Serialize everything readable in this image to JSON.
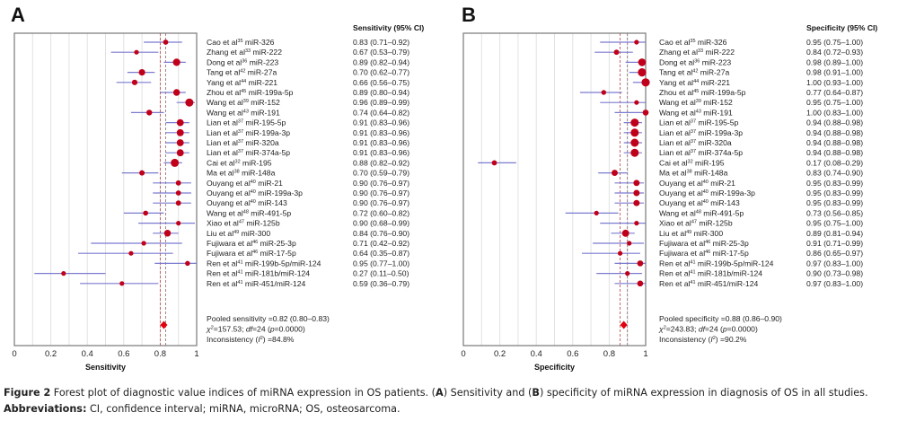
{
  "chart_data": [
    {
      "type": "forest",
      "panel": "A",
      "header": "Sensitivity (95% CI)",
      "xlabel": "Sensitivity",
      "xlim": [
        0,
        1
      ],
      "xticks": [
        "0",
        "0.2",
        "0.4",
        "0.6",
        "0.8",
        "1"
      ],
      "grid": true,
      "reference_lines": [
        0.8,
        0.83
      ],
      "studies": [
        {
          "author": "Cao et al",
          "ref": "35",
          "mirna": "miR-326",
          "est": 0.83,
          "lo": 0.71,
          "hi": 0.92,
          "text": "0.83 (0.71–0.92)"
        },
        {
          "author": "Zhang et al",
          "ref": "33",
          "mirna": "miR-222",
          "est": 0.67,
          "lo": 0.53,
          "hi": 0.79,
          "text": "0.67 (0.53–0.79)"
        },
        {
          "author": "Dong et al",
          "ref": "36",
          "mirna": "miR-223",
          "est": 0.89,
          "lo": 0.82,
          "hi": 0.94,
          "text": "0.89 (0.82–0.94)"
        },
        {
          "author": "Tang et al",
          "ref": "42",
          "mirna": "miR-27a",
          "est": 0.7,
          "lo": 0.62,
          "hi": 0.77,
          "text": "0.70 (0.62–0.77)"
        },
        {
          "author": "Yang et al",
          "ref": "44",
          "mirna": "miR-221",
          "est": 0.66,
          "lo": 0.56,
          "hi": 0.75,
          "text": "0.66 (0.56–0.75)"
        },
        {
          "author": "Zhou et al",
          "ref": "45",
          "mirna": "miR-199a-5p",
          "est": 0.89,
          "lo": 0.8,
          "hi": 0.94,
          "text": "0.89 (0.80–0.94)"
        },
        {
          "author": "Wang et al",
          "ref": "39",
          "mirna": "miR-152",
          "est": 0.96,
          "lo": 0.89,
          "hi": 0.99,
          "text": "0.96 (0.89–0.99)"
        },
        {
          "author": "Wang et al",
          "ref": "43",
          "mirna": "miR-191",
          "est": 0.74,
          "lo": 0.64,
          "hi": 0.82,
          "text": "0.74 (0.64–0.82)"
        },
        {
          "author": "Lian et al",
          "ref": "37",
          "mirna": "miR-195-5p",
          "est": 0.91,
          "lo": 0.83,
          "hi": 0.96,
          "text": "0.91 (0.83–0.96)"
        },
        {
          "author": "Lian et al",
          "ref": "37",
          "mirna": "miR-199a-3p",
          "est": 0.91,
          "lo": 0.83,
          "hi": 0.96,
          "text": "0.91 (0.83–0.96)"
        },
        {
          "author": "Lian et al",
          "ref": "37",
          "mirna": "miR-320a",
          "est": 0.91,
          "lo": 0.83,
          "hi": 0.96,
          "text": "0.91 (0.83–0.96)"
        },
        {
          "author": "Lian et al",
          "ref": "37",
          "mirna": "miR-374a-5p",
          "est": 0.91,
          "lo": 0.83,
          "hi": 0.96,
          "text": "0.91 (0.83–0.96)"
        },
        {
          "author": "Cai et al",
          "ref": "32",
          "mirna": "miR-195",
          "est": 0.88,
          "lo": 0.82,
          "hi": 0.92,
          "text": "0.88 (0.82–0.92)"
        },
        {
          "author": "Ma et al",
          "ref": "38",
          "mirna": "miR-148a",
          "est": 0.7,
          "lo": 0.59,
          "hi": 0.79,
          "text": "0.70 (0.59–0.79)"
        },
        {
          "author": "Ouyang et al",
          "ref": "40",
          "mirna": "miR-21",
          "est": 0.9,
          "lo": 0.76,
          "hi": 0.97,
          "text": "0.90 (0.76–0.97)"
        },
        {
          "author": "Ouyang et al",
          "ref": "40",
          "mirna": "miR-199a-3p",
          "est": 0.9,
          "lo": 0.76,
          "hi": 0.97,
          "text": "0.90 (0.76–0.97)"
        },
        {
          "author": "Ouyang et al",
          "ref": "40",
          "mirna": "miR-143",
          "est": 0.9,
          "lo": 0.76,
          "hi": 0.97,
          "text": "0.90 (0.76–0.97)"
        },
        {
          "author": "Wang et al",
          "ref": "48",
          "mirna": "miR-491-5p",
          "est": 0.72,
          "lo": 0.6,
          "hi": 0.82,
          "text": "0.72 (0.60–0.82)"
        },
        {
          "author": "Xiao et al",
          "ref": "47",
          "mirna": "miR-125b",
          "est": 0.9,
          "lo": 0.68,
          "hi": 0.99,
          "text": "0.90 (0.68–0.99)"
        },
        {
          "author": "Liu et al",
          "ref": "49",
          "mirna": "miR-300",
          "est": 0.84,
          "lo": 0.76,
          "hi": 0.9,
          "text": "0.84 (0.76–0.90)"
        },
        {
          "author": "Fujiwara et al",
          "ref": "46",
          "mirna": "miR-25-3p",
          "est": 0.71,
          "lo": 0.42,
          "hi": 0.92,
          "text": "0.71 (0.42–0.92)"
        },
        {
          "author": "Fujiwara et al",
          "ref": "46",
          "mirna": "miR-17-5p",
          "est": 0.64,
          "lo": 0.35,
          "hi": 0.87,
          "text": "0.64 (0.35–0.87)"
        },
        {
          "author": "Ren et al",
          "ref": "41",
          "mirna": "miR-199b-5p/miR-124",
          "est": 0.95,
          "lo": 0.77,
          "hi": 1.0,
          "text": "0.95 (0.77–1.00)"
        },
        {
          "author": "Ren et al",
          "ref": "41",
          "mirna": "miR-181b/miR-124",
          "est": 0.27,
          "lo": 0.11,
          "hi": 0.5,
          "text": "0.27 (0.11–0.50)"
        },
        {
          "author": "Ren et al",
          "ref": "41",
          "mirna": "miR-451/miR-124",
          "est": 0.59,
          "lo": 0.36,
          "hi": 0.79,
          "text": "0.59 (0.36–0.79)"
        }
      ],
      "pooled": {
        "est": 0.82,
        "lo": 0.8,
        "hi": 0.83,
        "text": "Pooled sensitivity =0.82 (0.80–0.83)"
      },
      "stats": {
        "chi2": "=157.53; ",
        "df_label": "df",
        "df": "=24 (",
        "p_label": "p",
        "p": "=0.0000)",
        "inconsistency_label": "Inconsistency (",
        "i2_label": "I",
        "i2": ") =84.8%"
      }
    },
    {
      "type": "forest",
      "panel": "B",
      "header": "Specificity (95% CI)",
      "xlabel": "Specificity",
      "xlim": [
        0,
        1
      ],
      "xticks": [
        "0",
        "0.2",
        "0.4",
        "0.6",
        "0.8",
        "1"
      ],
      "grid": true,
      "reference_lines": [
        0.86,
        0.9
      ],
      "studies": [
        {
          "author": "Cao et al",
          "ref": "35",
          "mirna": "miR-326",
          "est": 0.95,
          "lo": 0.75,
          "hi": 1.0,
          "text": "0.95 (0.75–1.00)"
        },
        {
          "author": "Zhang et al",
          "ref": "33",
          "mirna": "miR-222",
          "est": 0.84,
          "lo": 0.72,
          "hi": 0.93,
          "text": "0.84 (0.72–0.93)"
        },
        {
          "author": "Dong et al",
          "ref": "36",
          "mirna": "miR-223",
          "est": 0.98,
          "lo": 0.89,
          "hi": 1.0,
          "text": "0.98 (0.89–1.00)"
        },
        {
          "author": "Tang et al",
          "ref": "42",
          "mirna": "miR-27a",
          "est": 0.98,
          "lo": 0.91,
          "hi": 1.0,
          "text": "0.98 (0.91–1.00)"
        },
        {
          "author": "Yang et al",
          "ref": "44",
          "mirna": "miR-221",
          "est": 1.0,
          "lo": 0.93,
          "hi": 1.0,
          "text": "1.00 (0.93–1.00)"
        },
        {
          "author": "Zhou et al",
          "ref": "45",
          "mirna": "miR-199a-5p",
          "est": 0.77,
          "lo": 0.64,
          "hi": 0.87,
          "text": "0.77 (0.64–0.87)"
        },
        {
          "author": "Wang et al",
          "ref": "39",
          "mirna": "miR-152",
          "est": 0.95,
          "lo": 0.75,
          "hi": 1.0,
          "text": "0.95 (0.75–1.00)"
        },
        {
          "author": "Wang et al",
          "ref": "43",
          "mirna": "miR-191",
          "est": 1.0,
          "lo": 0.83,
          "hi": 1.0,
          "text": "1.00 (0.83–1.00)"
        },
        {
          "author": "Lian et al",
          "ref": "37",
          "mirna": "miR-195-5p",
          "est": 0.94,
          "lo": 0.88,
          "hi": 0.98,
          "text": "0.94 (0.88–0.98)"
        },
        {
          "author": "Lian et al",
          "ref": "37",
          "mirna": "miR-199a-3p",
          "est": 0.94,
          "lo": 0.88,
          "hi": 0.98,
          "text": "0.94 (0.88–0.98)"
        },
        {
          "author": "Lian et al",
          "ref": "37",
          "mirna": "miR-320a",
          "est": 0.94,
          "lo": 0.88,
          "hi": 0.98,
          "text": "0.94 (0.88–0.98)"
        },
        {
          "author": "Lian et al",
          "ref": "37",
          "mirna": "miR-374a-5p",
          "est": 0.94,
          "lo": 0.88,
          "hi": 0.98,
          "text": "0.94 (0.88–0.98)"
        },
        {
          "author": "Cai et al",
          "ref": "32",
          "mirna": "miR-195",
          "est": 0.17,
          "lo": 0.08,
          "hi": 0.29,
          "text": "0.17 (0.08–0.29)"
        },
        {
          "author": "Ma et al",
          "ref": "38",
          "mirna": "miR-148a",
          "est": 0.83,
          "lo": 0.74,
          "hi": 0.9,
          "text": "0.83 (0.74–0.90)"
        },
        {
          "author": "Ouyang et al",
          "ref": "40",
          "mirna": "miR-21",
          "est": 0.95,
          "lo": 0.83,
          "hi": 0.99,
          "text": "0.95 (0.83–0.99)"
        },
        {
          "author": "Ouyang et al",
          "ref": "40",
          "mirna": "miR-199a-3p",
          "est": 0.95,
          "lo": 0.83,
          "hi": 0.99,
          "text": "0.95 (0.83–0.99)"
        },
        {
          "author": "Ouyang et al",
          "ref": "40",
          "mirna": "miR-143",
          "est": 0.95,
          "lo": 0.83,
          "hi": 0.99,
          "text": "0.95 (0.83–0.99)"
        },
        {
          "author": "Wang et al",
          "ref": "48",
          "mirna": "miR-491-5p",
          "est": 0.73,
          "lo": 0.56,
          "hi": 0.85,
          "text": "0.73 (0.56–0.85)"
        },
        {
          "author": "Xiao et al",
          "ref": "47",
          "mirna": "miR-125b",
          "est": 0.95,
          "lo": 0.75,
          "hi": 1.0,
          "text": "0.95 (0.75–1.00)"
        },
        {
          "author": "Liu et al",
          "ref": "49",
          "mirna": "miR-300",
          "est": 0.89,
          "lo": 0.81,
          "hi": 0.94,
          "text": "0.89 (0.81–0.94)"
        },
        {
          "author": "Fujiwara et al",
          "ref": "46",
          "mirna": "miR-25-3p",
          "est": 0.91,
          "lo": 0.71,
          "hi": 0.99,
          "text": "0.91 (0.71–0.99)"
        },
        {
          "author": "Fujiwara et al",
          "ref": "46",
          "mirna": "miR-17-5p",
          "est": 0.86,
          "lo": 0.65,
          "hi": 0.97,
          "text": "0.86 (0.65–0.97)"
        },
        {
          "author": "Ren et al",
          "ref": "41",
          "mirna": "miR-199b-5p/miR-124",
          "est": 0.97,
          "lo": 0.83,
          "hi": 1.0,
          "text": "0.97 (0.83–1.00)"
        },
        {
          "author": "Ren et al",
          "ref": "41",
          "mirna": "miR-181b/miR-124",
          "est": 0.9,
          "lo": 0.73,
          "hi": 0.98,
          "text": "0.90 (0.73–0.98)"
        },
        {
          "author": "Ren et al",
          "ref": "41",
          "mirna": "miR-451/miR-124",
          "est": 0.97,
          "lo": 0.83,
          "hi": 1.0,
          "text": "0.97 (0.83–1.00)"
        }
      ],
      "pooled": {
        "est": 0.88,
        "lo": 0.86,
        "hi": 0.9,
        "text": "Pooled specificity =0.88 (0.86–0.90)"
      },
      "stats": {
        "chi2": "=243.83; ",
        "df_label": "df",
        "df": "=24 (",
        "p_label": "p",
        "p": "=0.0000)",
        "inconsistency_label": "Inconsistency (",
        "i2_label": "I",
        "i2": ") =90.2%"
      }
    }
  ],
  "panels": {
    "a": "A",
    "b": "B"
  },
  "caption": {
    "figure_label": "Figure 2",
    "figure_text": " Forest plot of diagnostic value indices of miRNA expression in OS patients. (",
    "part_a": "A",
    "mid_text": ") Sensitivity and (",
    "part_b": "B",
    "end_text": ") specificity of miRNA expression in diagnosis of OS in all studies.",
    "abbr_label": "Abbreviations:",
    "abbr_text": " CI, confidence interval; miRNA, microRNA; OS, osteosarcoma."
  },
  "colors": {
    "point": "#c0001a",
    "ci_line": "#7b7bd0",
    "ref_line": "#c04040",
    "pooled_line": "#8a6a6a",
    "diamond": "#e00010",
    "grid": "#e2e2e2",
    "frame": "#777777"
  }
}
